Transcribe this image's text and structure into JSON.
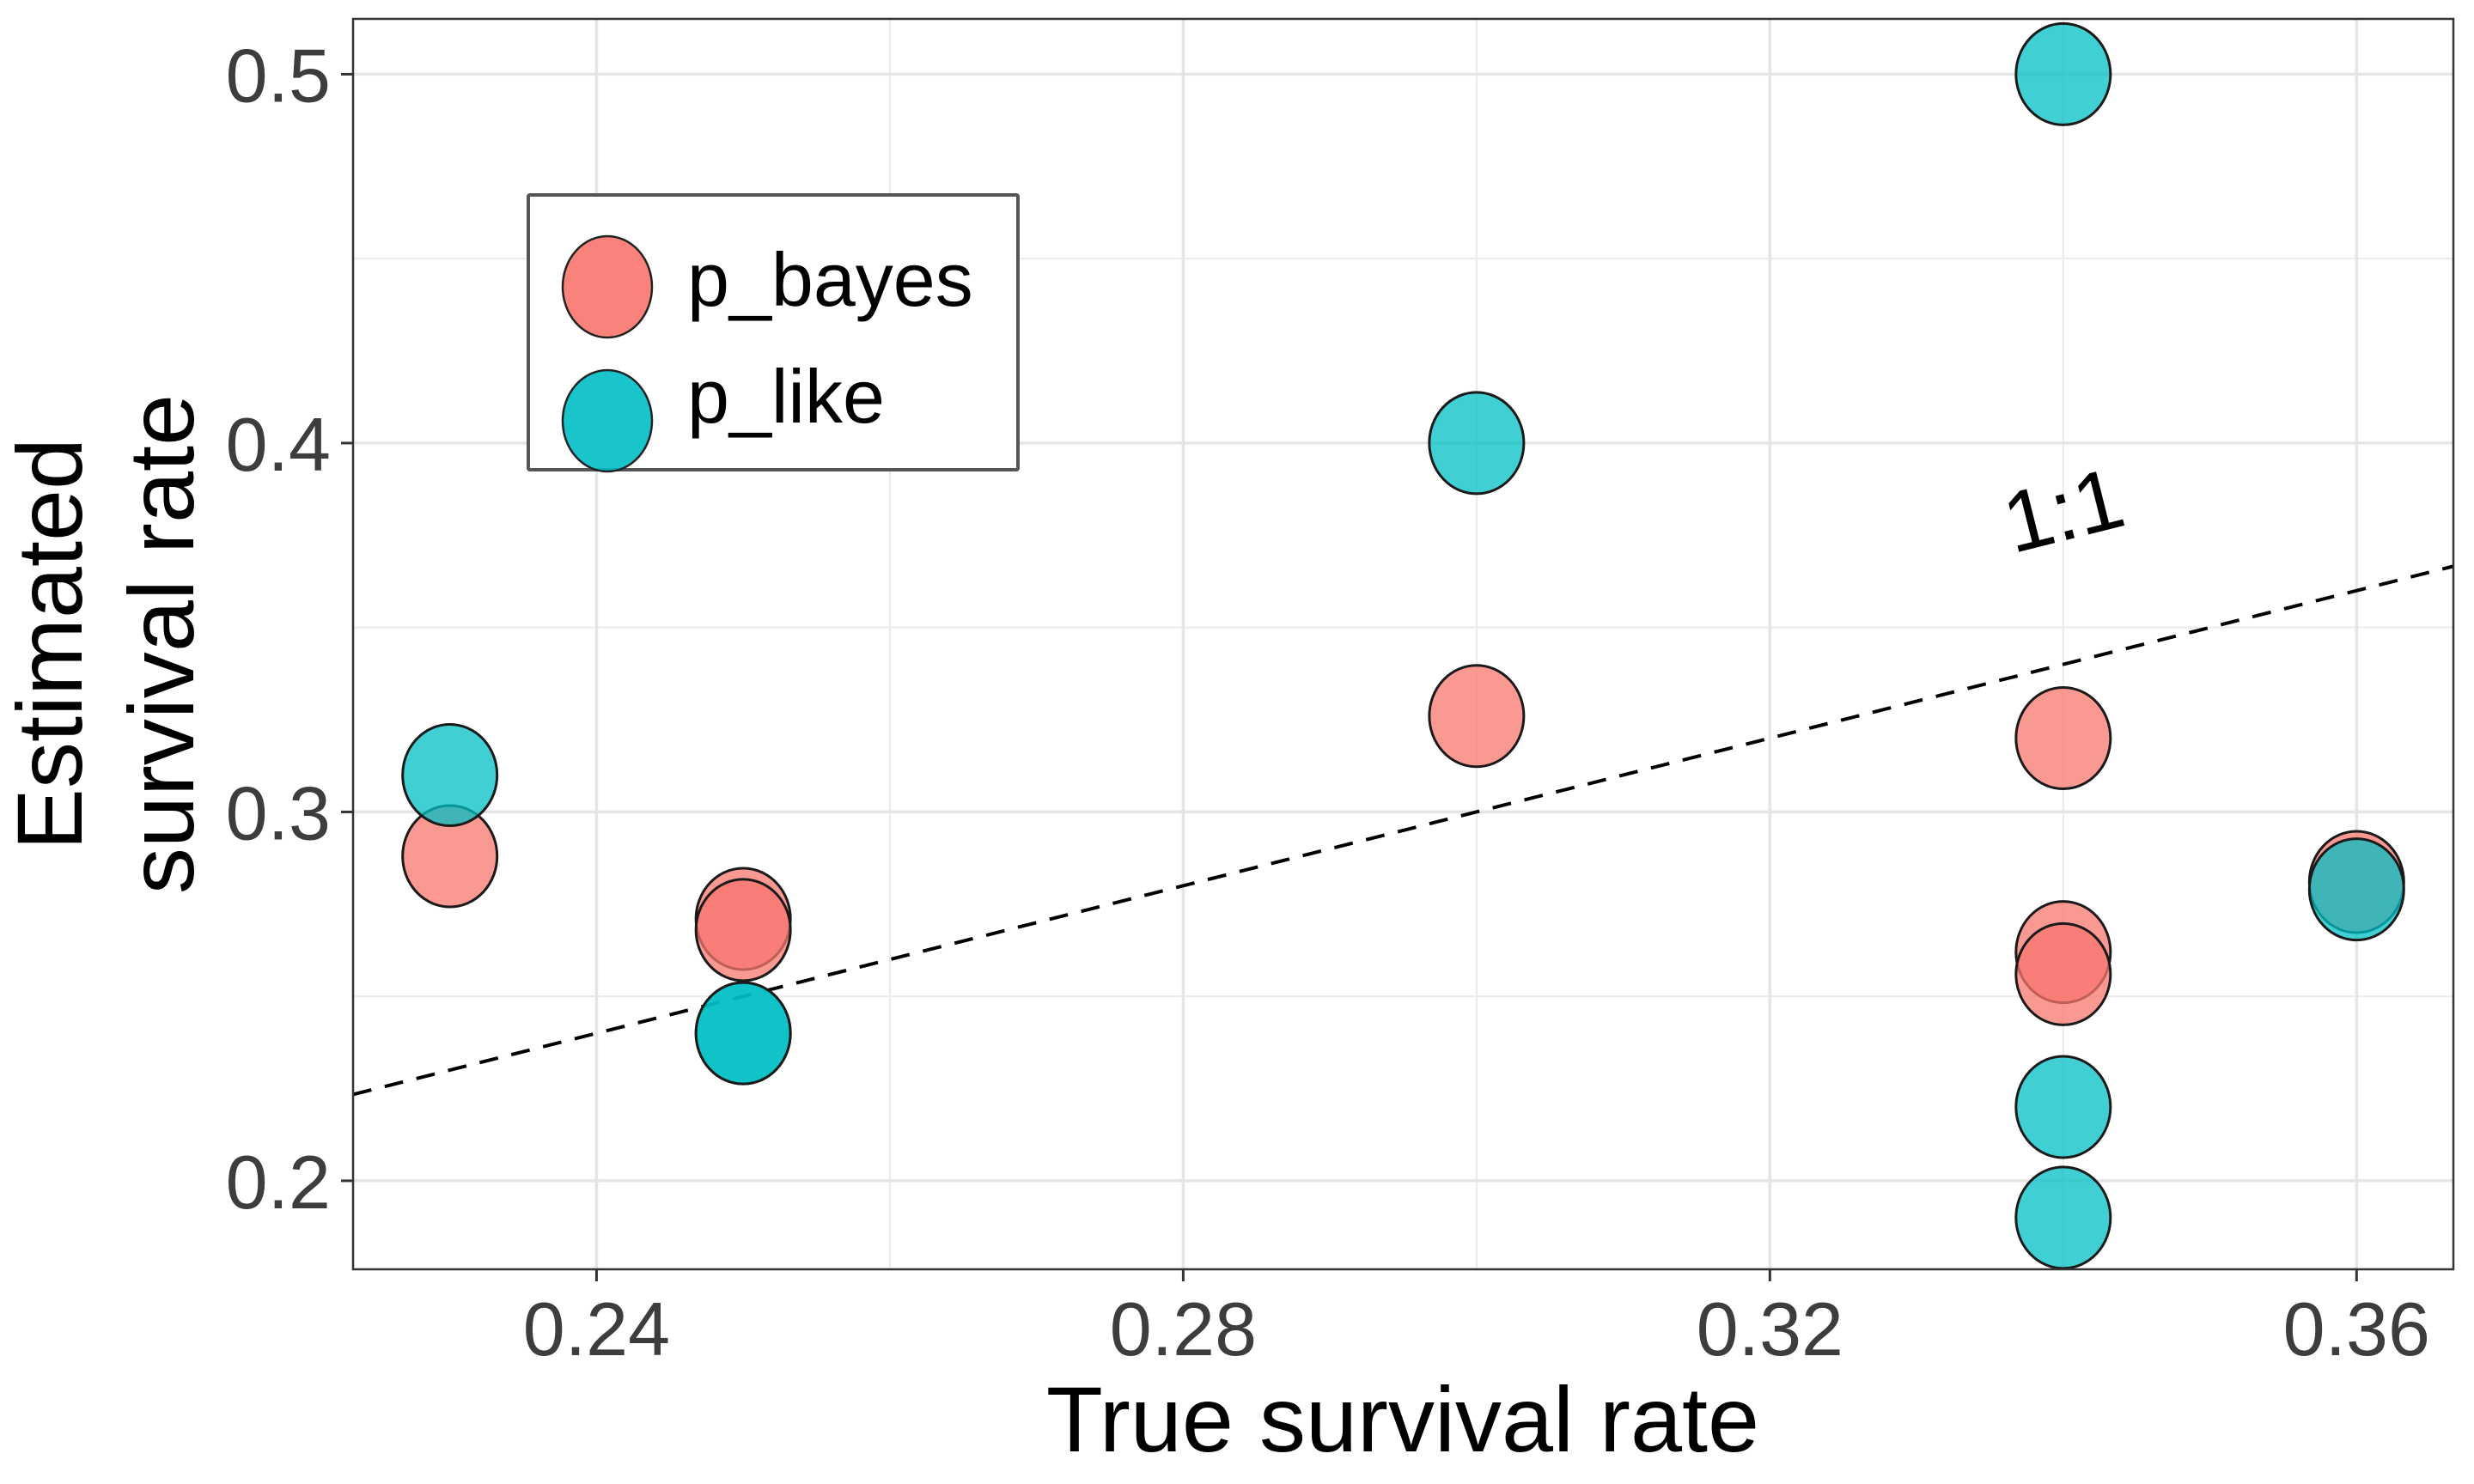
{
  "chart_data": {
    "type": "scatter",
    "title": "",
    "xlabel": "True survival rate",
    "ylabel_lines": [
      "Estimated",
      "survival rate"
    ],
    "xlim": [
      0.2234,
      0.3666
    ],
    "ylim": [
      0.176,
      0.515
    ],
    "x_ticks": [
      0.24,
      0.28,
      0.32,
      0.36
    ],
    "x_tick_labels": [
      "0.24",
      "0.28",
      "0.32",
      "0.36"
    ],
    "x_minor": [
      0.26,
      0.3,
      0.34
    ],
    "y_ticks": [
      0.2,
      0.3,
      0.4,
      0.5
    ],
    "y_tick_labels": [
      "0.2",
      "0.3",
      "0.4",
      "0.5"
    ],
    "y_minor": [
      0.25,
      0.35,
      0.45
    ],
    "grid": true,
    "legend_position": "top-left",
    "reference_line": {
      "slope": 1,
      "intercept": 0,
      "style": "dashed",
      "label": "1:1"
    },
    "series": [
      {
        "name": "p_bayes",
        "color": "#F8766D",
        "points": [
          {
            "x": 0.23,
            "y": 0.288
          },
          {
            "x": 0.25,
            "y": 0.271
          },
          {
            "x": 0.25,
            "y": 0.268
          },
          {
            "x": 0.3,
            "y": 0.326
          },
          {
            "x": 0.34,
            "y": 0.32
          },
          {
            "x": 0.34,
            "y": 0.262
          },
          {
            "x": 0.34,
            "y": 0.256
          },
          {
            "x": 0.36,
            "y": 0.281
          }
        ]
      },
      {
        "name": "p_like",
        "color": "#00BFC4",
        "points": [
          {
            "x": 0.23,
            "y": 0.31
          },
          {
            "x": 0.25,
            "y": 0.24
          },
          {
            "x": 0.25,
            "y": 0.24
          },
          {
            "x": 0.3,
            "y": 0.4
          },
          {
            "x": 0.34,
            "y": 0.5
          },
          {
            "x": 0.34,
            "y": 0.22
          },
          {
            "x": 0.34,
            "y": 0.19
          },
          {
            "x": 0.36,
            "y": 0.279
          }
        ]
      }
    ]
  }
}
